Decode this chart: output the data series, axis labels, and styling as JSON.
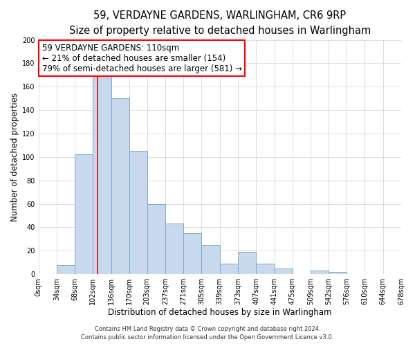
{
  "title": "59, VERDAYNE GARDENS, WARLINGHAM, CR6 9RP",
  "subtitle": "Size of property relative to detached houses in Warlingham",
  "xlabel": "Distribution of detached houses by size in Warlingham",
  "ylabel": "Number of detached properties",
  "bin_edges": [
    0,
    34,
    68,
    102,
    136,
    170,
    203,
    237,
    271,
    305,
    339,
    373,
    407,
    441,
    475,
    509,
    542,
    576,
    610,
    644,
    678
  ],
  "bin_counts": [
    0,
    8,
    102,
    168,
    150,
    105,
    60,
    43,
    35,
    25,
    9,
    19,
    9,
    5,
    0,
    3,
    2,
    0,
    0,
    0
  ],
  "tick_labels": [
    "0sqm",
    "34sqm",
    "68sqm",
    "102sqm",
    "136sqm",
    "170sqm",
    "203sqm",
    "237sqm",
    "271sqm",
    "305sqm",
    "339sqm",
    "373sqm",
    "407sqm",
    "441sqm",
    "475sqm",
    "509sqm",
    "542sqm",
    "576sqm",
    "610sqm",
    "644sqm",
    "678sqm"
  ],
  "bar_color": "#c8d9ee",
  "bar_edge_color": "#7aaad0",
  "bar_edge_width": 0.7,
  "red_line_x": 110,
  "ylim": [
    0,
    200
  ],
  "yticks": [
    0,
    20,
    40,
    60,
    80,
    100,
    120,
    140,
    160,
    180,
    200
  ],
  "annotation_line1": "59 VERDAYNE GARDENS: 110sqm",
  "annotation_line2": "← 21% of detached houses are smaller (154)",
  "annotation_line3": "79% of semi-detached houses are larger (581) →",
  "footer_line1": "Contains HM Land Registry data © Crown copyright and database right 2024.",
  "footer_line2": "Contains public sector information licensed under the Open Government Licence v3.0.",
  "background_color": "#ffffff",
  "grid_color": "#d0d0d0",
  "title_fontsize": 10.5,
  "subtitle_fontsize": 9,
  "axis_label_fontsize": 8.5,
  "tick_fontsize": 7,
  "footer_fontsize": 6,
  "annotation_fontsize": 8.5
}
